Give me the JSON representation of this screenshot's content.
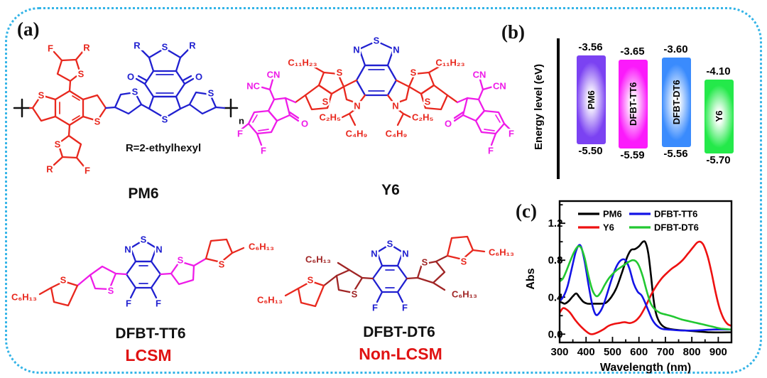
{
  "figure": {
    "panel_a_label": "(a)",
    "panel_b_label": "(b)",
    "panel_c_label": "(c)",
    "border_color": "#34b4e7"
  },
  "symbols": {
    "S": "S",
    "N": "N",
    "F": "F",
    "O": "O",
    "R": "R",
    "n": "n",
    "CN": "CN",
    "NC": "NC",
    "C6H13": "C₆H₁₃",
    "C11H23": "C₁₁H₂₃",
    "C2H5": "C₂H₅",
    "C4H9": "C₄H₉"
  },
  "molecules": {
    "pm6": {
      "name": "PM6",
      "r_definition": "R=2-ethylhexyl"
    },
    "y6": {
      "name": "Y6"
    },
    "dfbt_tt6": {
      "name": "DFBT-TT6",
      "tag": "LCSM"
    },
    "dfbt_dt6": {
      "name": "DFBT-DT6",
      "tag": "Non-LCSM"
    }
  },
  "energy_diagram": {
    "axis_label": "Energy level (eV)",
    "levels": [
      {
        "name": "PM6",
        "lumo": -3.56,
        "homo": -5.5,
        "color": "#7b42f2"
      },
      {
        "name": "DFBT-TT6",
        "lumo": -3.65,
        "homo": -5.59,
        "color": "#fb1afb"
      },
      {
        "name": "DFBT-DT6",
        "lumo": -3.6,
        "homo": -5.56,
        "color": "#3a8bfd"
      },
      {
        "name": "Y6",
        "lumo": -4.1,
        "homo": -5.7,
        "color": "#24e94a"
      }
    ]
  },
  "chart_data": {
    "type": "line",
    "title": "",
    "xlabel": "Wavelength (nm)",
    "ylabel": "Abs",
    "xlim": [
      300,
      950
    ],
    "ylim": [
      -0.09,
      1.44
    ],
    "xticks": [
      300,
      400,
      500,
      600,
      700,
      800,
      900
    ],
    "xticks_minor": [
      350,
      450,
      550,
      650,
      750,
      850,
      950
    ],
    "yticks": [
      0.0,
      0.4,
      0.8,
      1.2
    ],
    "yticks_minor": [
      0.2,
      0.6,
      1.0,
      1.4
    ],
    "grid": false,
    "legend_position": "top-inside",
    "series": [
      {
        "name": "PM6",
        "color": "#000000",
        "points": [
          [
            300,
            0.35
          ],
          [
            310,
            0.34
          ],
          [
            320,
            0.33
          ],
          [
            335,
            0.36
          ],
          [
            350,
            0.41
          ],
          [
            363,
            0.44
          ],
          [
            375,
            0.4
          ],
          [
            390,
            0.35
          ],
          [
            405,
            0.33
          ],
          [
            430,
            0.33
          ],
          [
            455,
            0.33
          ],
          [
            475,
            0.34
          ],
          [
            495,
            0.4
          ],
          [
            515,
            0.5
          ],
          [
            535,
            0.66
          ],
          [
            555,
            0.83
          ],
          [
            570,
            0.91
          ],
          [
            585,
            0.92
          ],
          [
            600,
            0.95
          ],
          [
            615,
            1.0
          ],
          [
            625,
            0.99
          ],
          [
            635,
            0.88
          ],
          [
            645,
            0.65
          ],
          [
            655,
            0.38
          ],
          [
            665,
            0.22
          ],
          [
            680,
            0.12
          ],
          [
            700,
            0.07
          ],
          [
            730,
            0.05
          ],
          [
            770,
            0.04
          ],
          [
            820,
            0.03
          ],
          [
            870,
            0.02
          ],
          [
            950,
            0.02
          ]
        ]
      },
      {
        "name": "Y6",
        "color": "#ee1111",
        "points": [
          [
            300,
            0.23
          ],
          [
            312,
            0.28
          ],
          [
            325,
            0.27
          ],
          [
            340,
            0.23
          ],
          [
            360,
            0.15
          ],
          [
            385,
            0.07
          ],
          [
            410,
            0.01
          ],
          [
            425,
            0.0
          ],
          [
            445,
            0.02
          ],
          [
            465,
            0.05
          ],
          [
            485,
            0.09
          ],
          [
            505,
            0.11
          ],
          [
            525,
            0.12
          ],
          [
            545,
            0.13
          ],
          [
            565,
            0.12
          ],
          [
            585,
            0.14
          ],
          [
            605,
            0.2
          ],
          [
            625,
            0.3
          ],
          [
            645,
            0.42
          ],
          [
            665,
            0.52
          ],
          [
            685,
            0.6
          ],
          [
            705,
            0.66
          ],
          [
            725,
            0.71
          ],
          [
            745,
            0.75
          ],
          [
            765,
            0.8
          ],
          [
            785,
            0.87
          ],
          [
            805,
            0.94
          ],
          [
            820,
            0.99
          ],
          [
            832,
            1.0
          ],
          [
            845,
            0.96
          ],
          [
            860,
            0.84
          ],
          [
            875,
            0.66
          ],
          [
            890,
            0.45
          ],
          [
            905,
            0.28
          ],
          [
            920,
            0.17
          ],
          [
            935,
            0.11
          ],
          [
            950,
            0.09
          ]
        ]
      },
      {
        "name": "DFBT-TT6",
        "color": "#1414e6",
        "points": [
          [
            300,
            0.36
          ],
          [
            315,
            0.41
          ],
          [
            330,
            0.52
          ],
          [
            345,
            0.7
          ],
          [
            360,
            0.88
          ],
          [
            372,
            0.96
          ],
          [
            382,
            0.94
          ],
          [
            395,
            0.78
          ],
          [
            410,
            0.52
          ],
          [
            425,
            0.3
          ],
          [
            437,
            0.21
          ],
          [
            450,
            0.23
          ],
          [
            465,
            0.31
          ],
          [
            480,
            0.44
          ],
          [
            495,
            0.58
          ],
          [
            510,
            0.7
          ],
          [
            525,
            0.78
          ],
          [
            540,
            0.81
          ],
          [
            552,
            0.79
          ],
          [
            565,
            0.7
          ],
          [
            580,
            0.55
          ],
          [
            595,
            0.46
          ],
          [
            610,
            0.42
          ],
          [
            622,
            0.35
          ],
          [
            635,
            0.26
          ],
          [
            650,
            0.16
          ],
          [
            665,
            0.1
          ],
          [
            685,
            0.06
          ],
          [
            710,
            0.05
          ],
          [
            760,
            0.04
          ],
          [
            820,
            0.04
          ],
          [
            880,
            0.05
          ],
          [
            950,
            0.05
          ]
        ]
      },
      {
        "name": "DFBT-DT6",
        "color": "#22c832",
        "points": [
          [
            300,
            0.57
          ],
          [
            312,
            0.6
          ],
          [
            325,
            0.68
          ],
          [
            340,
            0.79
          ],
          [
            355,
            0.89
          ],
          [
            370,
            0.95
          ],
          [
            382,
            0.93
          ],
          [
            395,
            0.82
          ],
          [
            410,
            0.62
          ],
          [
            425,
            0.47
          ],
          [
            440,
            0.41
          ],
          [
            455,
            0.45
          ],
          [
            470,
            0.53
          ],
          [
            485,
            0.6
          ],
          [
            500,
            0.65
          ],
          [
            515,
            0.69
          ],
          [
            530,
            0.72
          ],
          [
            545,
            0.75
          ],
          [
            560,
            0.78
          ],
          [
            575,
            0.8
          ],
          [
            588,
            0.79
          ],
          [
            600,
            0.74
          ],
          [
            615,
            0.62
          ],
          [
            630,
            0.46
          ],
          [
            645,
            0.33
          ],
          [
            660,
            0.27
          ],
          [
            680,
            0.23
          ],
          [
            705,
            0.21
          ],
          [
            730,
            0.19
          ],
          [
            760,
            0.16
          ],
          [
            790,
            0.14
          ],
          [
            820,
            0.12
          ],
          [
            850,
            0.1
          ],
          [
            880,
            0.08
          ],
          [
            910,
            0.06
          ],
          [
            950,
            0.05
          ]
        ]
      }
    ]
  }
}
